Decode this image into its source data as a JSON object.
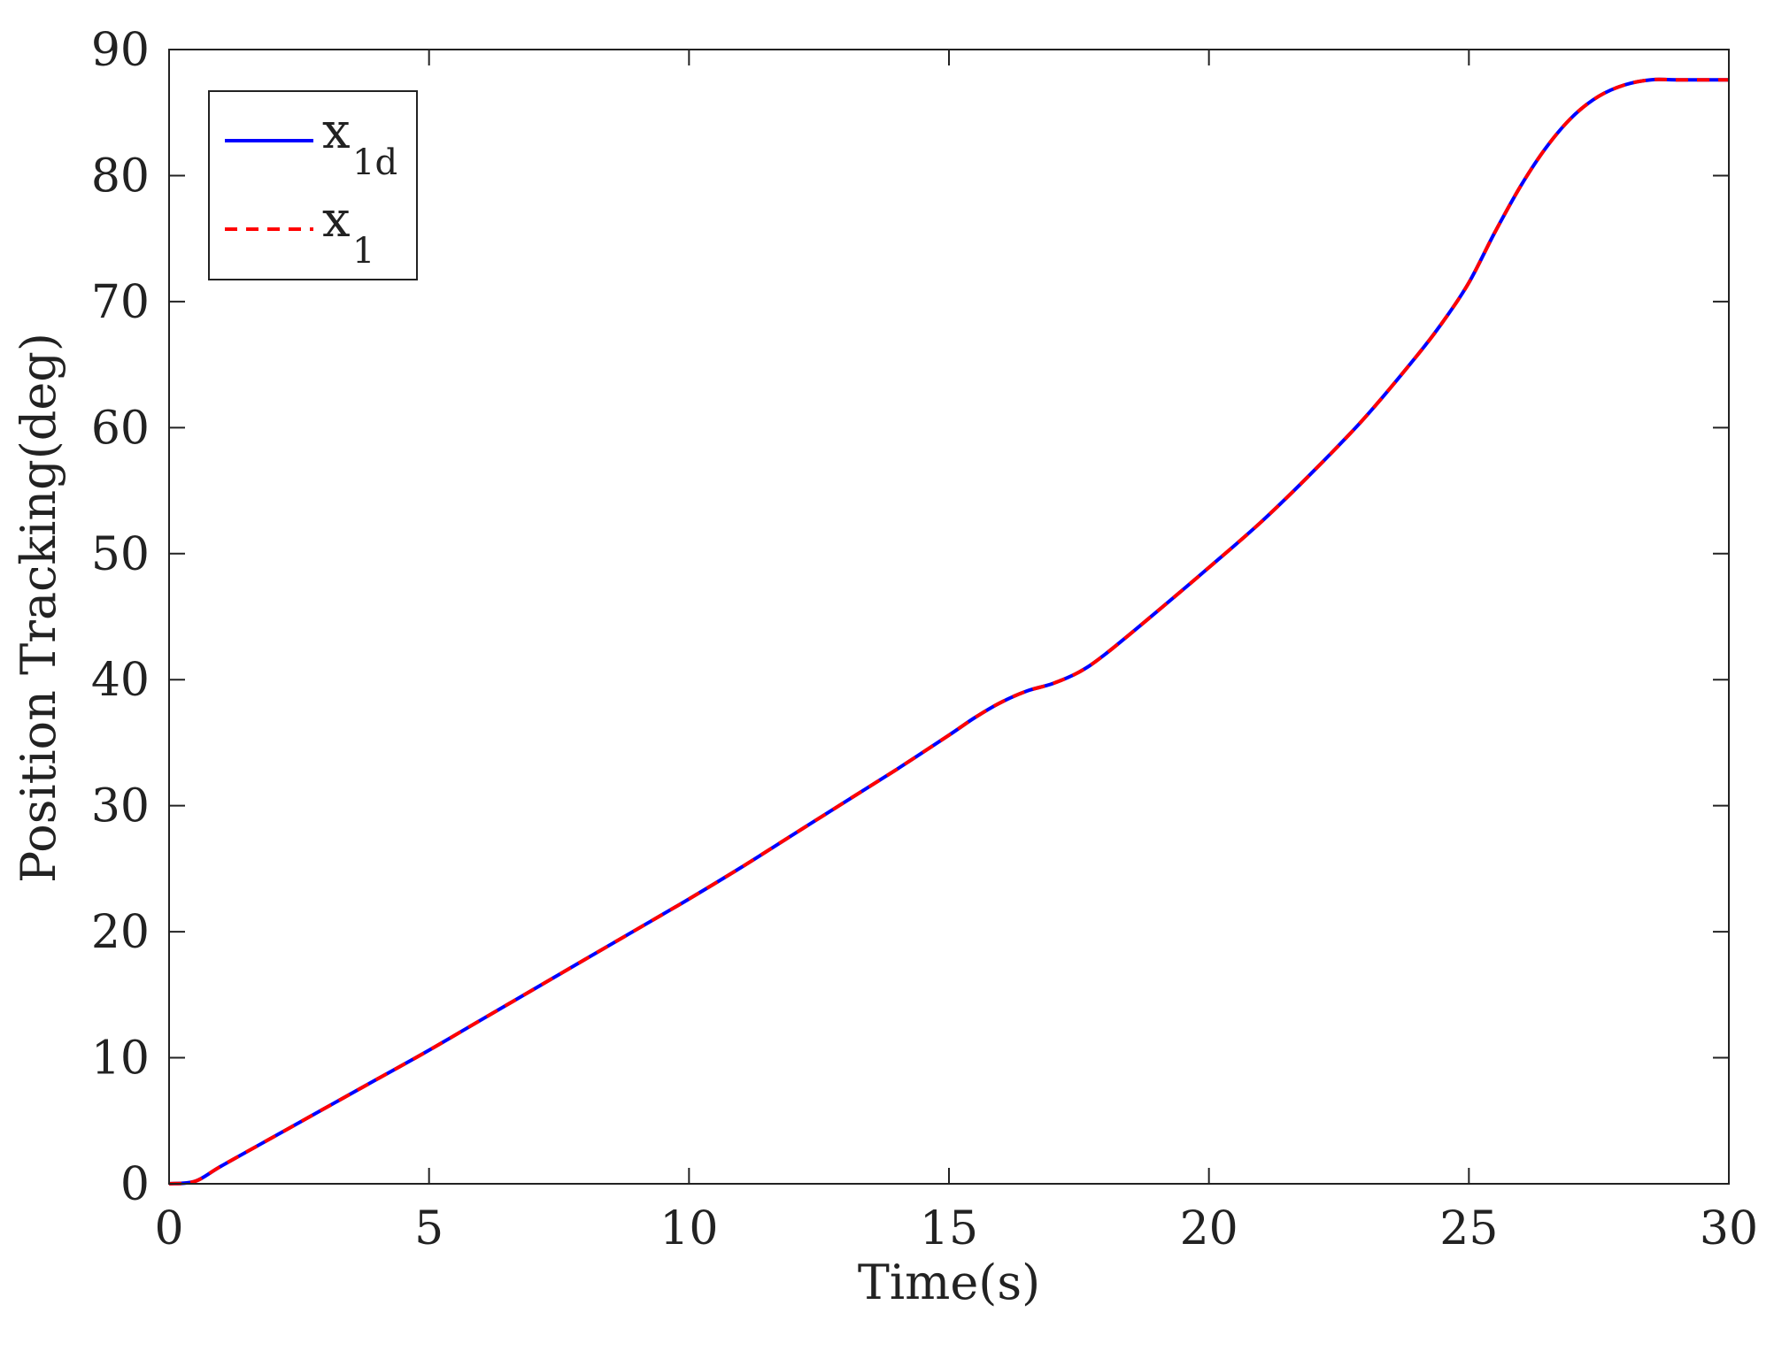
{
  "chart_data": {
    "type": "line",
    "xlabel": "Time(s)",
    "ylabel": "Position Tracking(deg)",
    "xlim": [
      0,
      30
    ],
    "ylim": [
      0,
      90
    ],
    "xticks": [
      0,
      5,
      10,
      15,
      20,
      25,
      30
    ],
    "yticks": [
      0,
      10,
      20,
      30,
      40,
      50,
      60,
      70,
      80,
      90
    ],
    "grid": false,
    "legend_position": "top-left",
    "series": [
      {
        "name": "x_1d",
        "label_main": "x",
        "label_sub": "1d",
        "color": "#0000ff",
        "style": "solid",
        "x": [
          0,
          0.5,
          1,
          2,
          3,
          4,
          5,
          6,
          7,
          8,
          9,
          10,
          11,
          12,
          13,
          14,
          15,
          15.5,
          16,
          16.5,
          17,
          17.5,
          18,
          19,
          20,
          21,
          22,
          23,
          24,
          24.5,
          25,
          25.5,
          26,
          26.5,
          27,
          27.5,
          28,
          28.5,
          29,
          30
        ],
        "y": [
          0,
          0.2,
          1.4,
          3.7,
          6.0,
          8.3,
          10.6,
          13.0,
          15.4,
          17.8,
          20.2,
          22.6,
          25.1,
          27.7,
          30.3,
          32.9,
          35.6,
          37.0,
          38.2,
          39.1,
          39.7,
          40.6,
          42.0,
          45.4,
          48.9,
          52.5,
          56.5,
          60.8,
          65.7,
          68.4,
          71.5,
          75.5,
          79.2,
          82.3,
          84.7,
          86.3,
          87.2,
          87.6,
          87.6,
          87.6
        ]
      },
      {
        "name": "x_1",
        "label_main": "x",
        "label_sub": "1",
        "color": "#ff0000",
        "style": "dashed",
        "x": [
          0,
          0.5,
          1,
          2,
          3,
          4,
          5,
          6,
          7,
          8,
          9,
          10,
          11,
          12,
          13,
          14,
          15,
          15.5,
          16,
          16.5,
          17,
          17.5,
          18,
          19,
          20,
          21,
          22,
          23,
          24,
          24.5,
          25,
          25.5,
          26,
          26.5,
          27,
          27.5,
          28,
          28.5,
          29,
          30
        ],
        "y": [
          0,
          0.2,
          1.4,
          3.7,
          6.0,
          8.3,
          10.6,
          13.0,
          15.4,
          17.8,
          20.2,
          22.6,
          25.1,
          27.7,
          30.3,
          32.9,
          35.6,
          37.0,
          38.2,
          39.1,
          39.7,
          40.6,
          42.0,
          45.4,
          48.9,
          52.5,
          56.5,
          60.8,
          65.7,
          68.4,
          71.5,
          75.5,
          79.2,
          82.3,
          84.7,
          86.3,
          87.2,
          87.6,
          87.6,
          87.6
        ]
      }
    ]
  }
}
